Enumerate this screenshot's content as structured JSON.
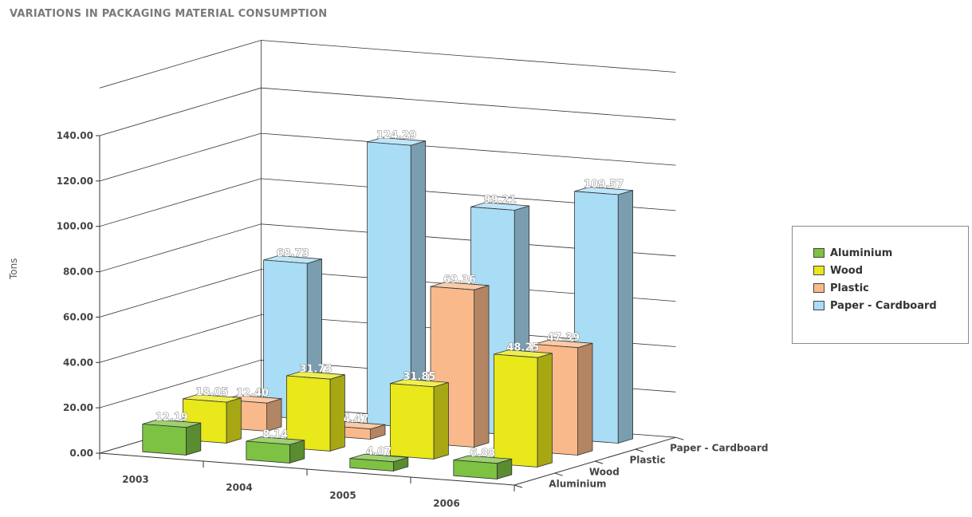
{
  "chart_data": {
    "type": "bar",
    "title": "VARIATIONS IN PACKAGING MATERIAL CONSUMPTION",
    "ylabel": "Tons",
    "ylim": [
      0,
      140
    ],
    "yticks": [
      "0.00",
      "20.00",
      "40.00",
      "60.00",
      "80.00",
      "100.00",
      "120.00",
      "140.00"
    ],
    "categories": [
      "2003",
      "2004",
      "2005",
      "2006"
    ],
    "depth_labels": [
      "Aluminium",
      "Wood",
      "Plastic",
      "Paper - Cardboard"
    ],
    "series": [
      {
        "name": "Aluminium",
        "color": "#7dc242",
        "values": [
          12.19,
          8.14,
          4.07,
          6.88
        ],
        "labels": [
          "12.19",
          "8.14",
          "4.07",
          "6.88"
        ]
      },
      {
        "name": "Wood",
        "color": "#e8e81a",
        "values": [
          18.05,
          31.73,
          31.85,
          48.25
        ],
        "labels": [
          "18.05",
          "31.73",
          "31.85",
          "48.25"
        ]
      },
      {
        "name": "Plastic",
        "color": "#f9b98a",
        "values": [
          12.4,
          4.47,
          69.36,
          47.39
        ],
        "labels": [
          "12.40",
          "4.47",
          "69.36",
          "47.39"
        ]
      },
      {
        "name": "Paper - Cardboard",
        "color": "#a9dcf5",
        "values": [
          68.73,
          124.29,
          99.21,
          109.57
        ],
        "labels": [
          "68.73",
          "124.29",
          "99.21",
          "109.57"
        ]
      }
    ],
    "legend_position": "right",
    "grid": true
  }
}
